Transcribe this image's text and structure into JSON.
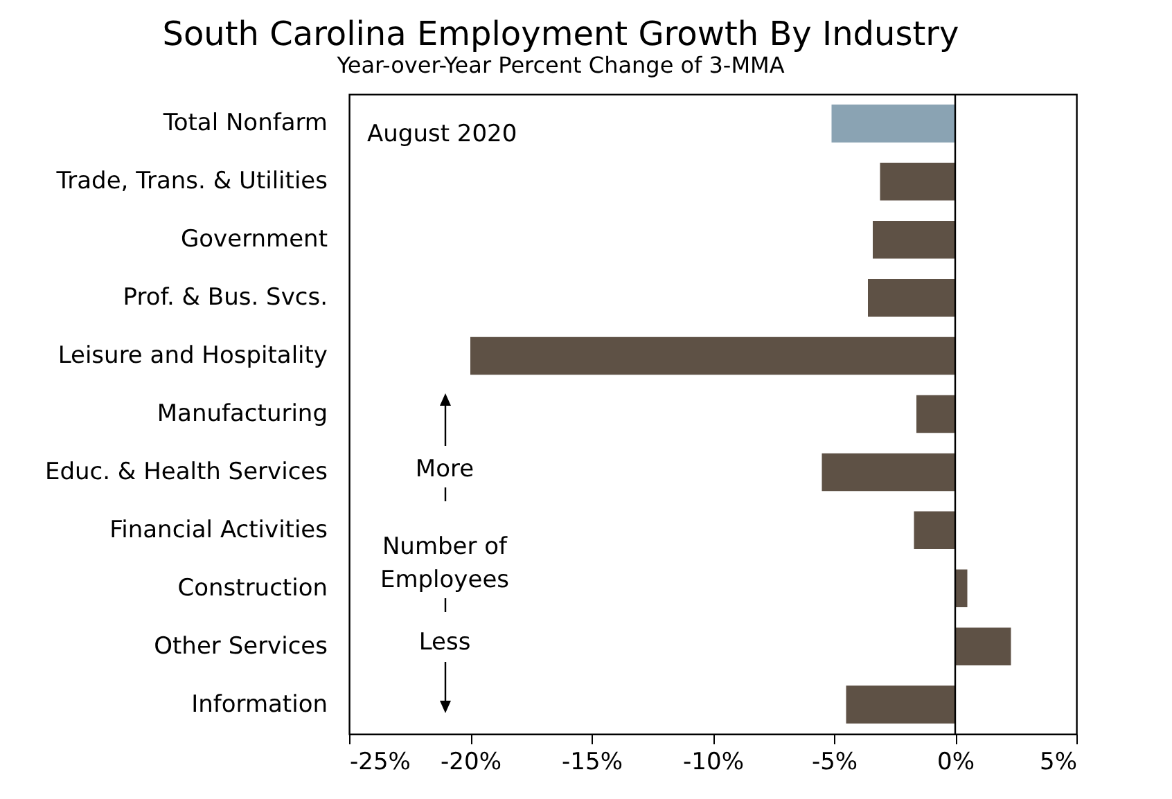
{
  "chart_data": {
    "type": "bar",
    "orientation": "horizontal",
    "title": "South Carolina Employment Growth By Industry",
    "subtitle": "Year-over-Year Percent Change of 3-MMA",
    "categories": [
      "Total Nonfarm",
      "Trade, Trans. & Utilities",
      "Government",
      "Prof. & Bus. Svcs.",
      "Leisure and Hospitality",
      "Manufacturing",
      "Educ. & Health Services",
      "Financial Activities",
      "Construction",
      "Other Services",
      "Information"
    ],
    "values": [
      -5.1,
      -3.1,
      -3.4,
      -3.6,
      -20.0,
      -1.6,
      -5.5,
      -1.7,
      0.5,
      2.3,
      -4.5
    ],
    "colors": [
      "#8aa3b3",
      "#5e5145",
      "#5e5145",
      "#5e5145",
      "#5e5145",
      "#5e5145",
      "#5e5145",
      "#5e5145",
      "#5e5145",
      "#5e5145",
      "#5e5145"
    ],
    "xlim": [
      -25,
      5
    ],
    "xticks": [
      {
        "value": -25,
        "label": "-25%"
      },
      {
        "value": -20,
        "label": "-20%"
      },
      {
        "value": -15,
        "label": "-15%"
      },
      {
        "value": -10,
        "label": "-10%"
      },
      {
        "value": -5,
        "label": "-5%"
      },
      {
        "value": 0,
        "label": "0%"
      },
      {
        "value": 5,
        "label": "5%"
      }
    ],
    "ref_lines": [
      {
        "axis": "x",
        "value": 0,
        "color": "#000000"
      }
    ],
    "annotations": [
      "August 2020",
      "More",
      "Number of\nEmployees",
      "Less"
    ],
    "grid": false
  }
}
